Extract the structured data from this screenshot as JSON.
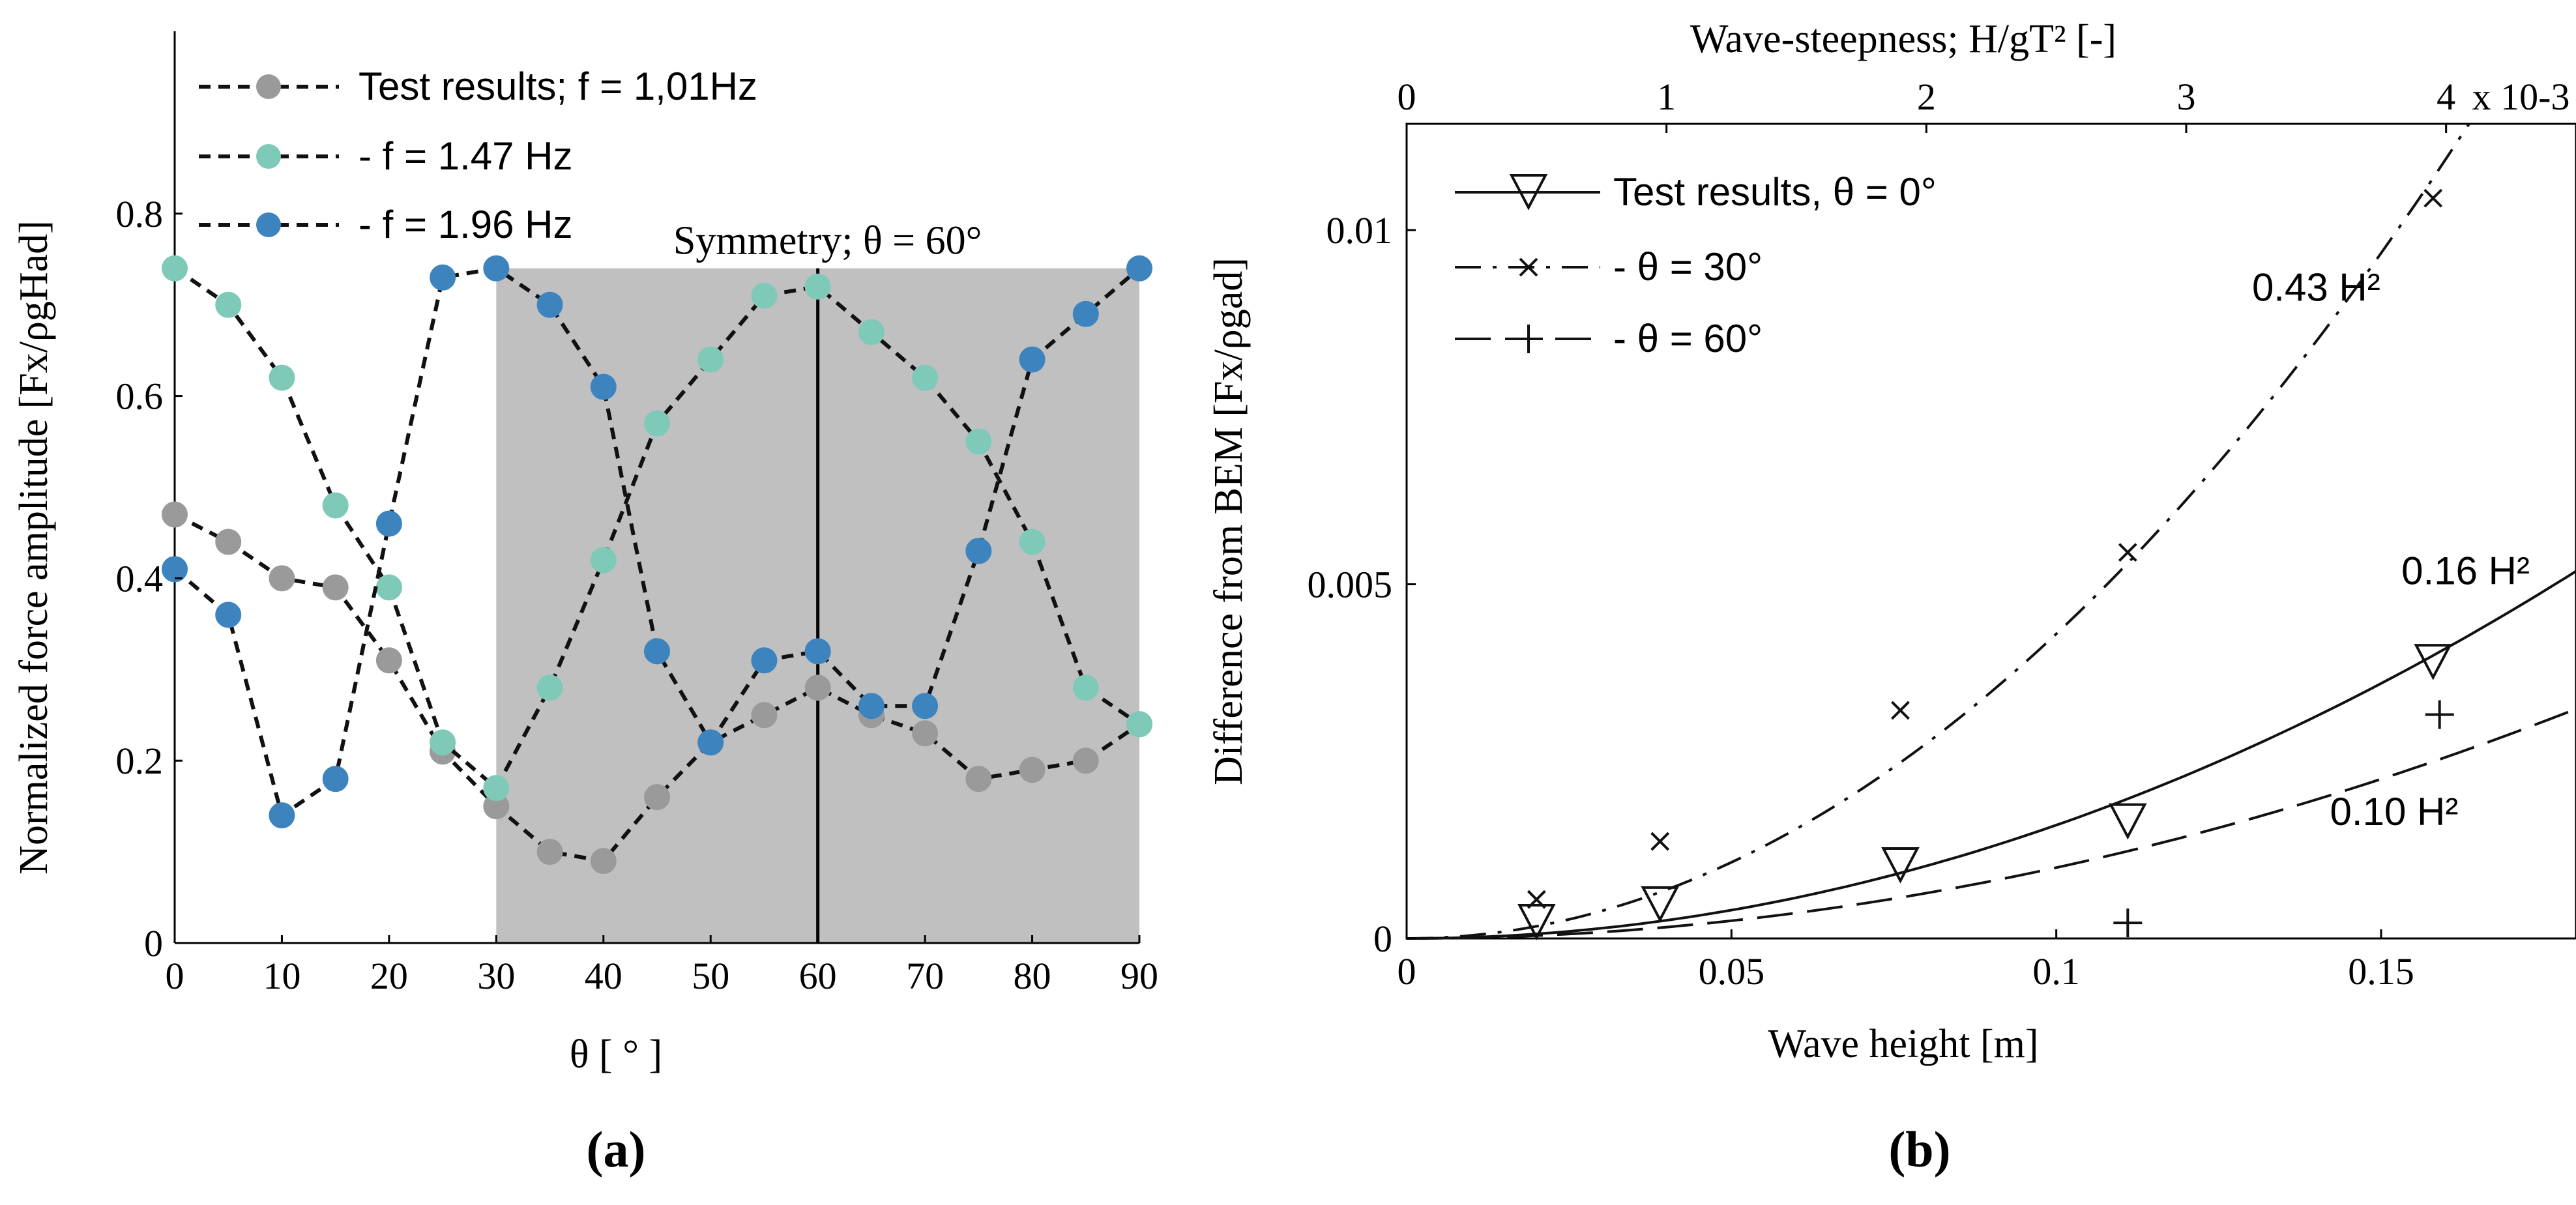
{
  "chart_data": [
    {
      "panel": "(a)",
      "type": "line",
      "xlabel": "θ [ ° ]",
      "ylabel": "Normalized force amplitude [Fx/ρgHad]",
      "xlim": [
        0,
        90
      ],
      "ylim": [
        0,
        1.0
      ],
      "xticks": [
        "0",
        "10",
        "20",
        "30",
        "40",
        "50",
        "60",
        "70",
        "80",
        "90"
      ],
      "yticks": [
        "0",
        "0.2",
        "0.4",
        "0.6",
        "0.8"
      ],
      "shaded_region": [
        30,
        90
      ],
      "vline": {
        "x": 60,
        "label": "Symmetry; θ = 60°"
      },
      "x": [
        0,
        5,
        10,
        15,
        20,
        25,
        30,
        35,
        40,
        45,
        50,
        55,
        60,
        65,
        70,
        75,
        80,
        85,
        90
      ],
      "series": [
        {
          "name": "Test results; f = 1,01Hz",
          "color": "#9a9a9a",
          "values": [
            0.47,
            0.44,
            0.4,
            0.39,
            0.31,
            0.21,
            0.15,
            0.1,
            0.09,
            0.16,
            0.22,
            0.25,
            0.28,
            0.25,
            0.23,
            0.18,
            0.19,
            0.2,
            0.24
          ]
        },
        {
          "name": "- f = 1.47 Hz",
          "color": "#7fc9b8",
          "values": [
            0.74,
            0.7,
            0.62,
            0.48,
            0.39,
            0.22,
            0.17,
            0.28,
            0.42,
            0.57,
            0.64,
            0.71,
            0.72,
            0.67,
            0.62,
            0.55,
            0.44,
            0.28,
            0.24
          ]
        },
        {
          "name": "- f = 1.96 Hz",
          "color": "#3d84bf",
          "values": [
            0.41,
            0.36,
            0.14,
            0.18,
            0.46,
            0.73,
            0.74,
            0.7,
            0.61,
            0.32,
            0.22,
            0.31,
            0.32,
            0.26,
            0.26,
            0.43,
            0.64,
            0.69,
            0.74
          ]
        }
      ]
    },
    {
      "panel": "(b)",
      "type": "scatter",
      "xlabel": "Wave height [m]",
      "ylabel": "Difference from BEM [Fx/ρgad]",
      "top_xlabel": "Wave-steepness; H/gT² [-]",
      "xlim": [
        0,
        0.18
      ],
      "ylim": [
        0,
        0.0115
      ],
      "xticks": [
        "0",
        "0.05",
        "0.1",
        "0.15"
      ],
      "yticks": [
        "0",
        "0.005",
        "0.01"
      ],
      "top_xlim": [
        0,
        4.5
      ],
      "top_xticks": [
        "0",
        "1",
        "2",
        "3",
        "4"
      ],
      "top_exponent": "x 10-3",
      "series": [
        {
          "name": "Test results, θ = 0°",
          "marker": "triangle",
          "line": "solid",
          "fit_coef": 0.16,
          "fit_label": "0.16 H²",
          "points": [
            [
              0.02,
              0.00023
            ],
            [
              0.039,
              0.00048
            ],
            [
              0.076,
              0.00103
            ],
            [
              0.111,
              0.00165
            ],
            [
              0.158,
              0.0039
            ]
          ]
        },
        {
          "name": "- θ = 30°",
          "marker": "x",
          "line": "dashdot",
          "fit_coef": 0.43,
          "fit_label": "0.43 H²",
          "points": [
            [
              0.02,
              0.00055
            ],
            [
              0.039,
              0.00137
            ],
            [
              0.076,
              0.00322
            ],
            [
              0.111,
              0.00545
            ],
            [
              0.158,
              0.01045
            ]
          ]
        },
        {
          "name": "- θ = 60°",
          "marker": "plus",
          "line": "longdash",
          "fit_coef": 0.1,
          "fit_label": "0.10 H²",
          "points": [
            [
              0.111,
              0.00022
            ],
            [
              0.159,
              0.00316
            ]
          ]
        }
      ]
    }
  ],
  "labels": {
    "panel_a": "(a)",
    "panel_b": "(b)"
  }
}
